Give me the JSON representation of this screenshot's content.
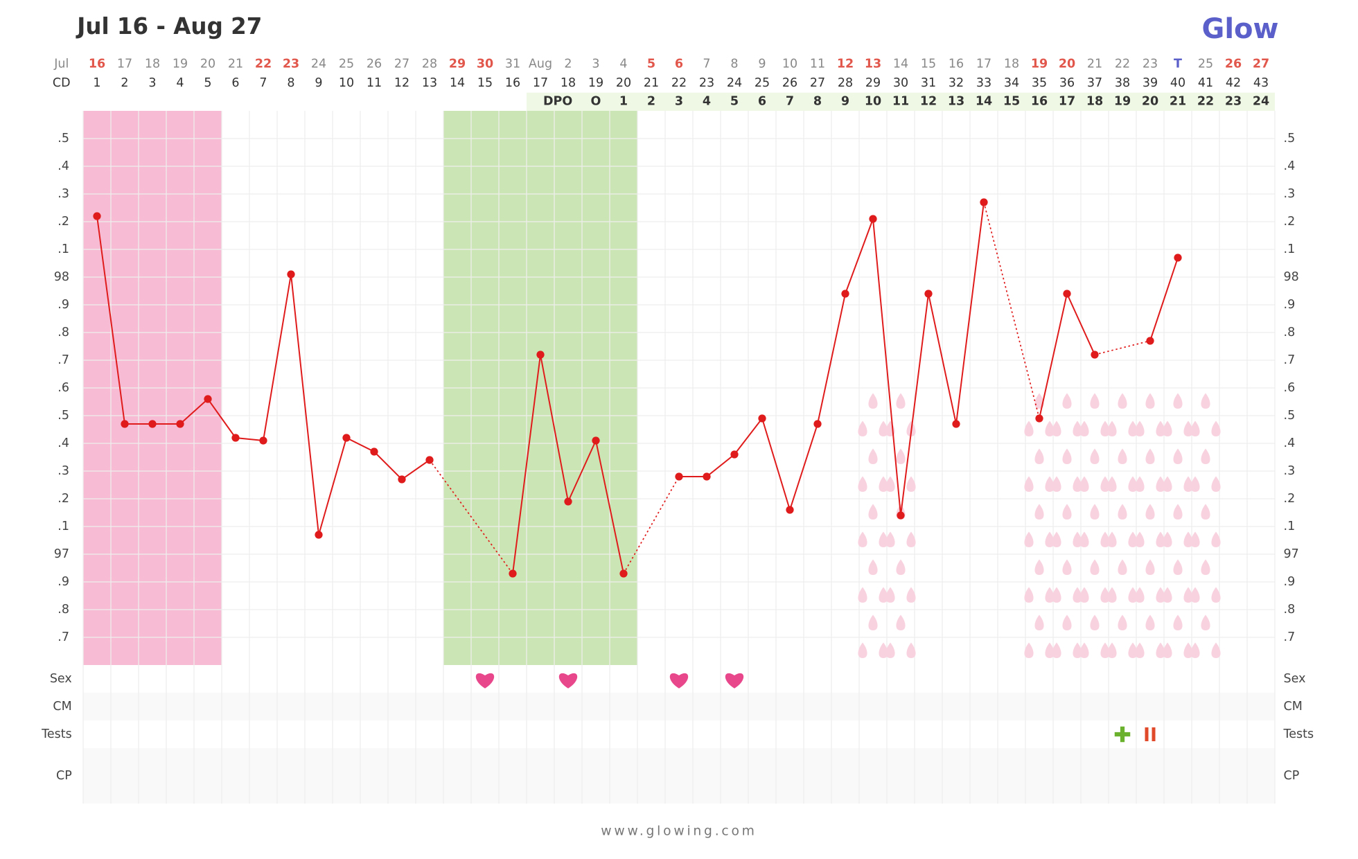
{
  "chart_data": {
    "type": "line",
    "title": "Jul 16 - Aug 27",
    "brand": "Glow",
    "footer": "www.glowing.com",
    "month_label": "Jul",
    "categories": [
      "16",
      "17",
      "18",
      "19",
      "20",
      "21",
      "22",
      "23",
      "24",
      "25",
      "26",
      "27",
      "28",
      "29",
      "30",
      "31",
      "Aug",
      "2",
      "3",
      "4",
      "5",
      "6",
      "7",
      "8",
      "9",
      "10",
      "11",
      "12",
      "13",
      "14",
      "15",
      "16",
      "17",
      "18",
      "19",
      "20",
      "21",
      "22",
      "23",
      "T",
      "25",
      "26",
      "27"
    ],
    "red_days": [
      0,
      6,
      7,
      13,
      14,
      20,
      21,
      27,
      28,
      34,
      35,
      41,
      42
    ],
    "red_color": "#e2574c",
    "today_day": 39,
    "today_color": "#5a5fc9",
    "cd_label": "CD",
    "cd": [
      1,
      2,
      3,
      4,
      5,
      6,
      7,
      8,
      9,
      10,
      11,
      12,
      13,
      14,
      15,
      16,
      17,
      18,
      19,
      20,
      21,
      22,
      23,
      24,
      25,
      26,
      27,
      28,
      29,
      30,
      31,
      32,
      33,
      34,
      35,
      36,
      37,
      38,
      39,
      40,
      41,
      42,
      43
    ],
    "dpo_label": "DPO",
    "dpo": [
      null,
      null,
      null,
      null,
      null,
      null,
      null,
      null,
      null,
      null,
      null,
      null,
      null,
      null,
      null,
      null,
      null,
      null,
      "O",
      1,
      2,
      3,
      4,
      5,
      6,
      7,
      8,
      9,
      10,
      11,
      12,
      13,
      14,
      15,
      16,
      17,
      18,
      19,
      20,
      21,
      22,
      23,
      24
    ],
    "series": [
      {
        "color": "#e01b1b",
        "values": [
          98.22,
          97.47,
          97.47,
          97.47,
          97.56,
          97.42,
          97.41,
          98.01,
          97.07,
          97.42,
          97.37,
          97.27,
          97.34,
          null,
          null,
          96.93,
          97.72,
          97.19,
          97.41,
          96.93,
          null,
          97.28,
          97.28,
          97.36,
          97.49,
          97.16,
          97.47,
          97.94,
          98.21,
          97.14,
          97.94,
          97.47,
          98.27,
          null,
          97.49,
          97.94,
          97.72,
          null,
          97.77,
          98.07,
          null,
          null,
          null
        ]
      }
    ],
    "ylim": [
      96.6,
      98.6
    ],
    "yticks": [
      {
        "value": 98.5,
        "label": ".5"
      },
      {
        "value": 98.4,
        "label": ".4"
      },
      {
        "value": 98.3,
        "label": ".3"
      },
      {
        "value": 98.2,
        "label": ".2"
      },
      {
        "value": 98.1,
        "label": ".1"
      },
      98,
      {
        "value": 97.9,
        "label": ".9"
      },
      {
        "value": 97.8,
        "label": ".8"
      },
      {
        "value": 97.7,
        "label": ".7"
      },
      {
        "value": 97.6,
        "label": ".6"
      },
      {
        "value": 97.5,
        "label": ".5"
      },
      {
        "value": 97.4,
        "label": ".4"
      },
      {
        "value": 97.3,
        "label": ".3"
      },
      {
        "value": 97.2,
        "label": ".2"
      },
      {
        "value": 97.1,
        "label": ".1"
      },
      97,
      {
        "value": 96.9,
        "label": ".9"
      },
      {
        "value": 96.8,
        "label": ".8"
      },
      {
        "value": 96.7,
        "label": ".7"
      }
    ],
    "grid": true,
    "period_days": [
      0,
      4
    ],
    "fertile_days": [
      13,
      19
    ],
    "spotting_days": [
      28,
      29,
      34,
      35,
      36,
      37,
      38,
      39,
      40
    ],
    "rows": [
      "Sex",
      "CM",
      "Tests",
      "CP"
    ],
    "sex_days": [
      14,
      17,
      21,
      23
    ],
    "test_positive_days": [
      37
    ],
    "test_negative_days": [
      38
    ]
  }
}
